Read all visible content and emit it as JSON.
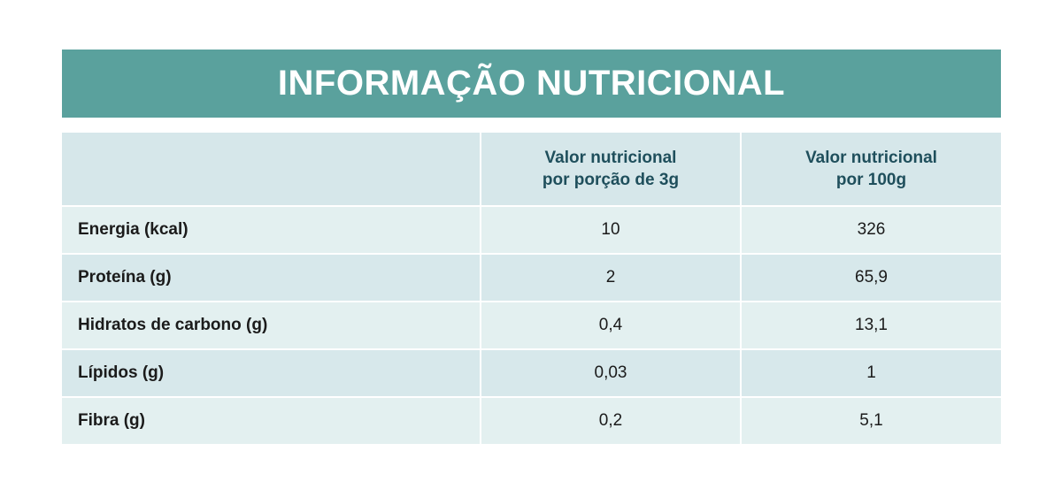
{
  "title": "INFORMAÇÃO NUTRICIONAL",
  "table": {
    "headers": [
      "",
      "Valor nutricional\npor porção de 3g",
      "Valor nutricional\npor 100g"
    ],
    "rows": [
      {
        "label": "Energia (kcal)",
        "per_portion": "10",
        "per_100g": "326"
      },
      {
        "label": "Proteína (g)",
        "per_portion": "2",
        "per_100g": "65,9"
      },
      {
        "label": "Hidratos de carbono (g)",
        "per_portion": "0,4",
        "per_100g": "13,1"
      },
      {
        "label": "Lípidos (g)",
        "per_portion": "0,03",
        "per_100g": "1"
      },
      {
        "label": "Fibra (g)",
        "per_portion": "0,2",
        "per_100g": "5,1"
      }
    ]
  },
  "colors": {
    "title_bar": "#5aa19d",
    "header_text": "#1f4f5c",
    "row_light": "#e3f0f0",
    "row_dark": "#d7e8eb"
  }
}
